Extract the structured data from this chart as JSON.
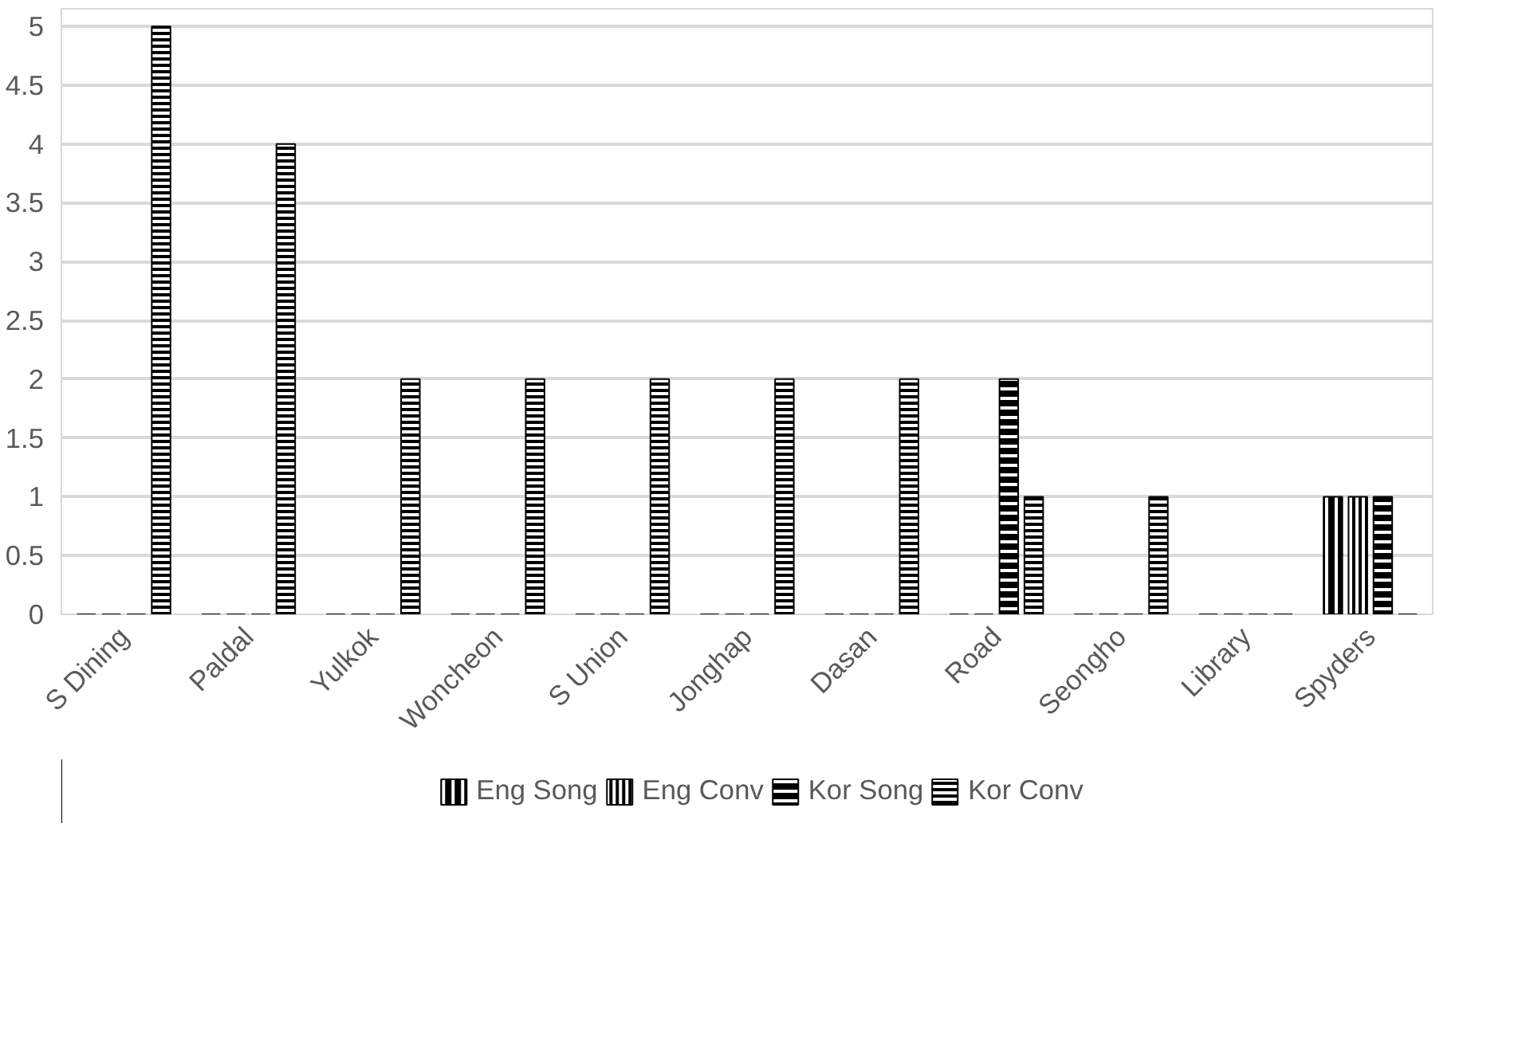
{
  "chart_data": {
    "type": "bar",
    "categories": [
      "S Dining",
      "Paldal",
      "Yulkok",
      "Woncheon",
      "S Union",
      "Jonghap",
      "Dasan",
      "Road",
      "Seongho",
      "Library",
      "Spyders"
    ],
    "series": [
      {
        "name": "Eng Song",
        "color": "#000000",
        "values": [
          0,
          0,
          0,
          0,
          0,
          0,
          0,
          0,
          0,
          0,
          1
        ]
      },
      {
        "name": "Eng Conv",
        "color": "#000000",
        "values": [
          0,
          0,
          0,
          0,
          0,
          0,
          0,
          0,
          0,
          0,
          1
        ]
      },
      {
        "name": "Kor Song",
        "color": "#000000",
        "values": [
          0,
          0,
          0,
          0,
          0,
          0,
          0,
          2,
          0,
          0,
          1
        ]
      },
      {
        "name": "Kor Conv",
        "color": "#000000",
        "values": [
          5,
          4,
          2,
          2,
          2,
          2,
          2,
          1,
          1,
          0,
          0
        ]
      }
    ],
    "ylim": [
      0,
      5.15
    ],
    "yticks": [
      0,
      {
        "value": 0.5,
        "label": "0.5"
      },
      1,
      {
        "value": 1.5,
        "label": "1.5"
      },
      2,
      {
        "value": 2.5,
        "label": "2.5"
      },
      3,
      {
        "value": 3.5,
        "label": "3.5"
      },
      4,
      {
        "value": 4.5,
        "label": "4.5"
      },
      5
    ],
    "grid": "y",
    "legend": "bottom"
  }
}
